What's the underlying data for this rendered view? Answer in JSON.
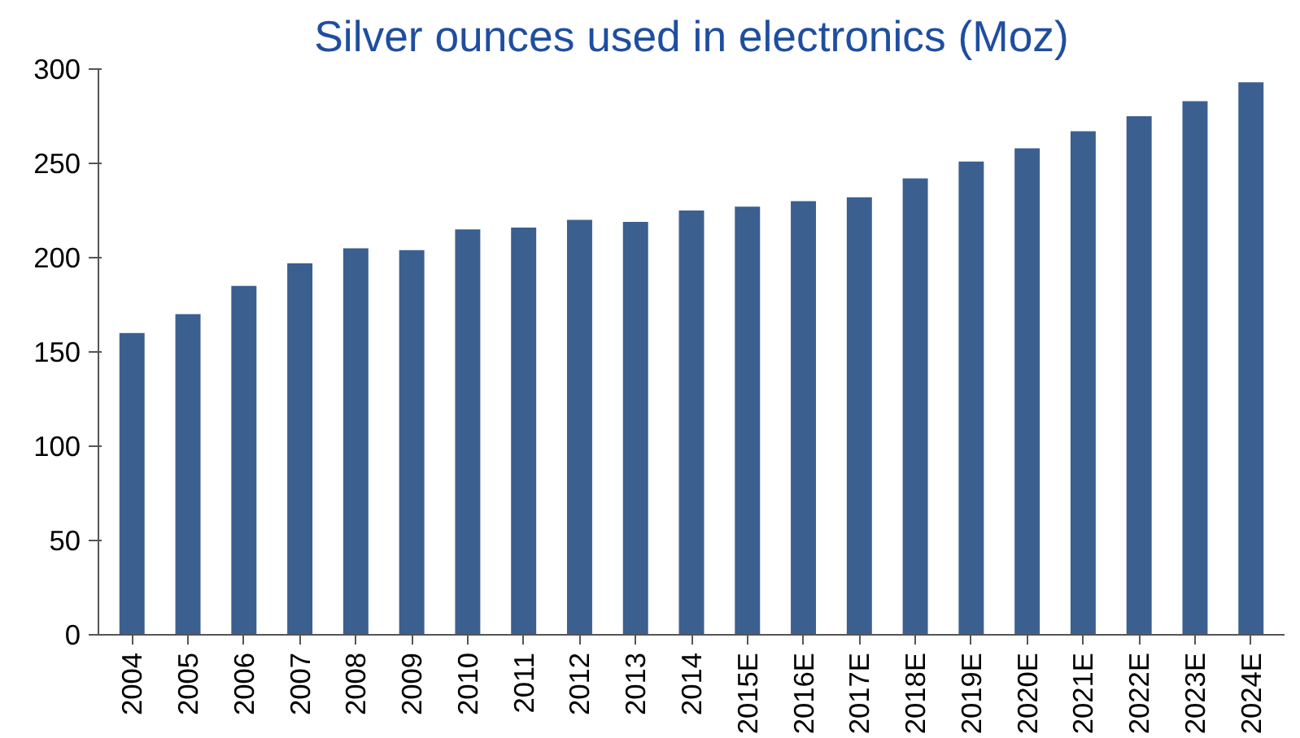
{
  "chart_data": {
    "type": "bar",
    "title": "Silver ounces used in electronics (Moz)",
    "categories": [
      "2004",
      "2005",
      "2006",
      "2007",
      "2008",
      "2009",
      "2010",
      "2011",
      "2012",
      "2013",
      "2014",
      "2015E",
      "2016E",
      "2017E",
      "2018E",
      "2019E",
      "2020E",
      "2021E",
      "2022E",
      "2023E",
      "2024E"
    ],
    "values": [
      160,
      170,
      185,
      197,
      205,
      204,
      215,
      216,
      220,
      219,
      225,
      227,
      230,
      232,
      242,
      251,
      258,
      267,
      275,
      283,
      293
    ],
    "color": "#3b5f8f",
    "ylim": [
      0,
      300
    ],
    "yticks": [
      0,
      50,
      100,
      150,
      200,
      250,
      300
    ],
    "grid": false
  }
}
